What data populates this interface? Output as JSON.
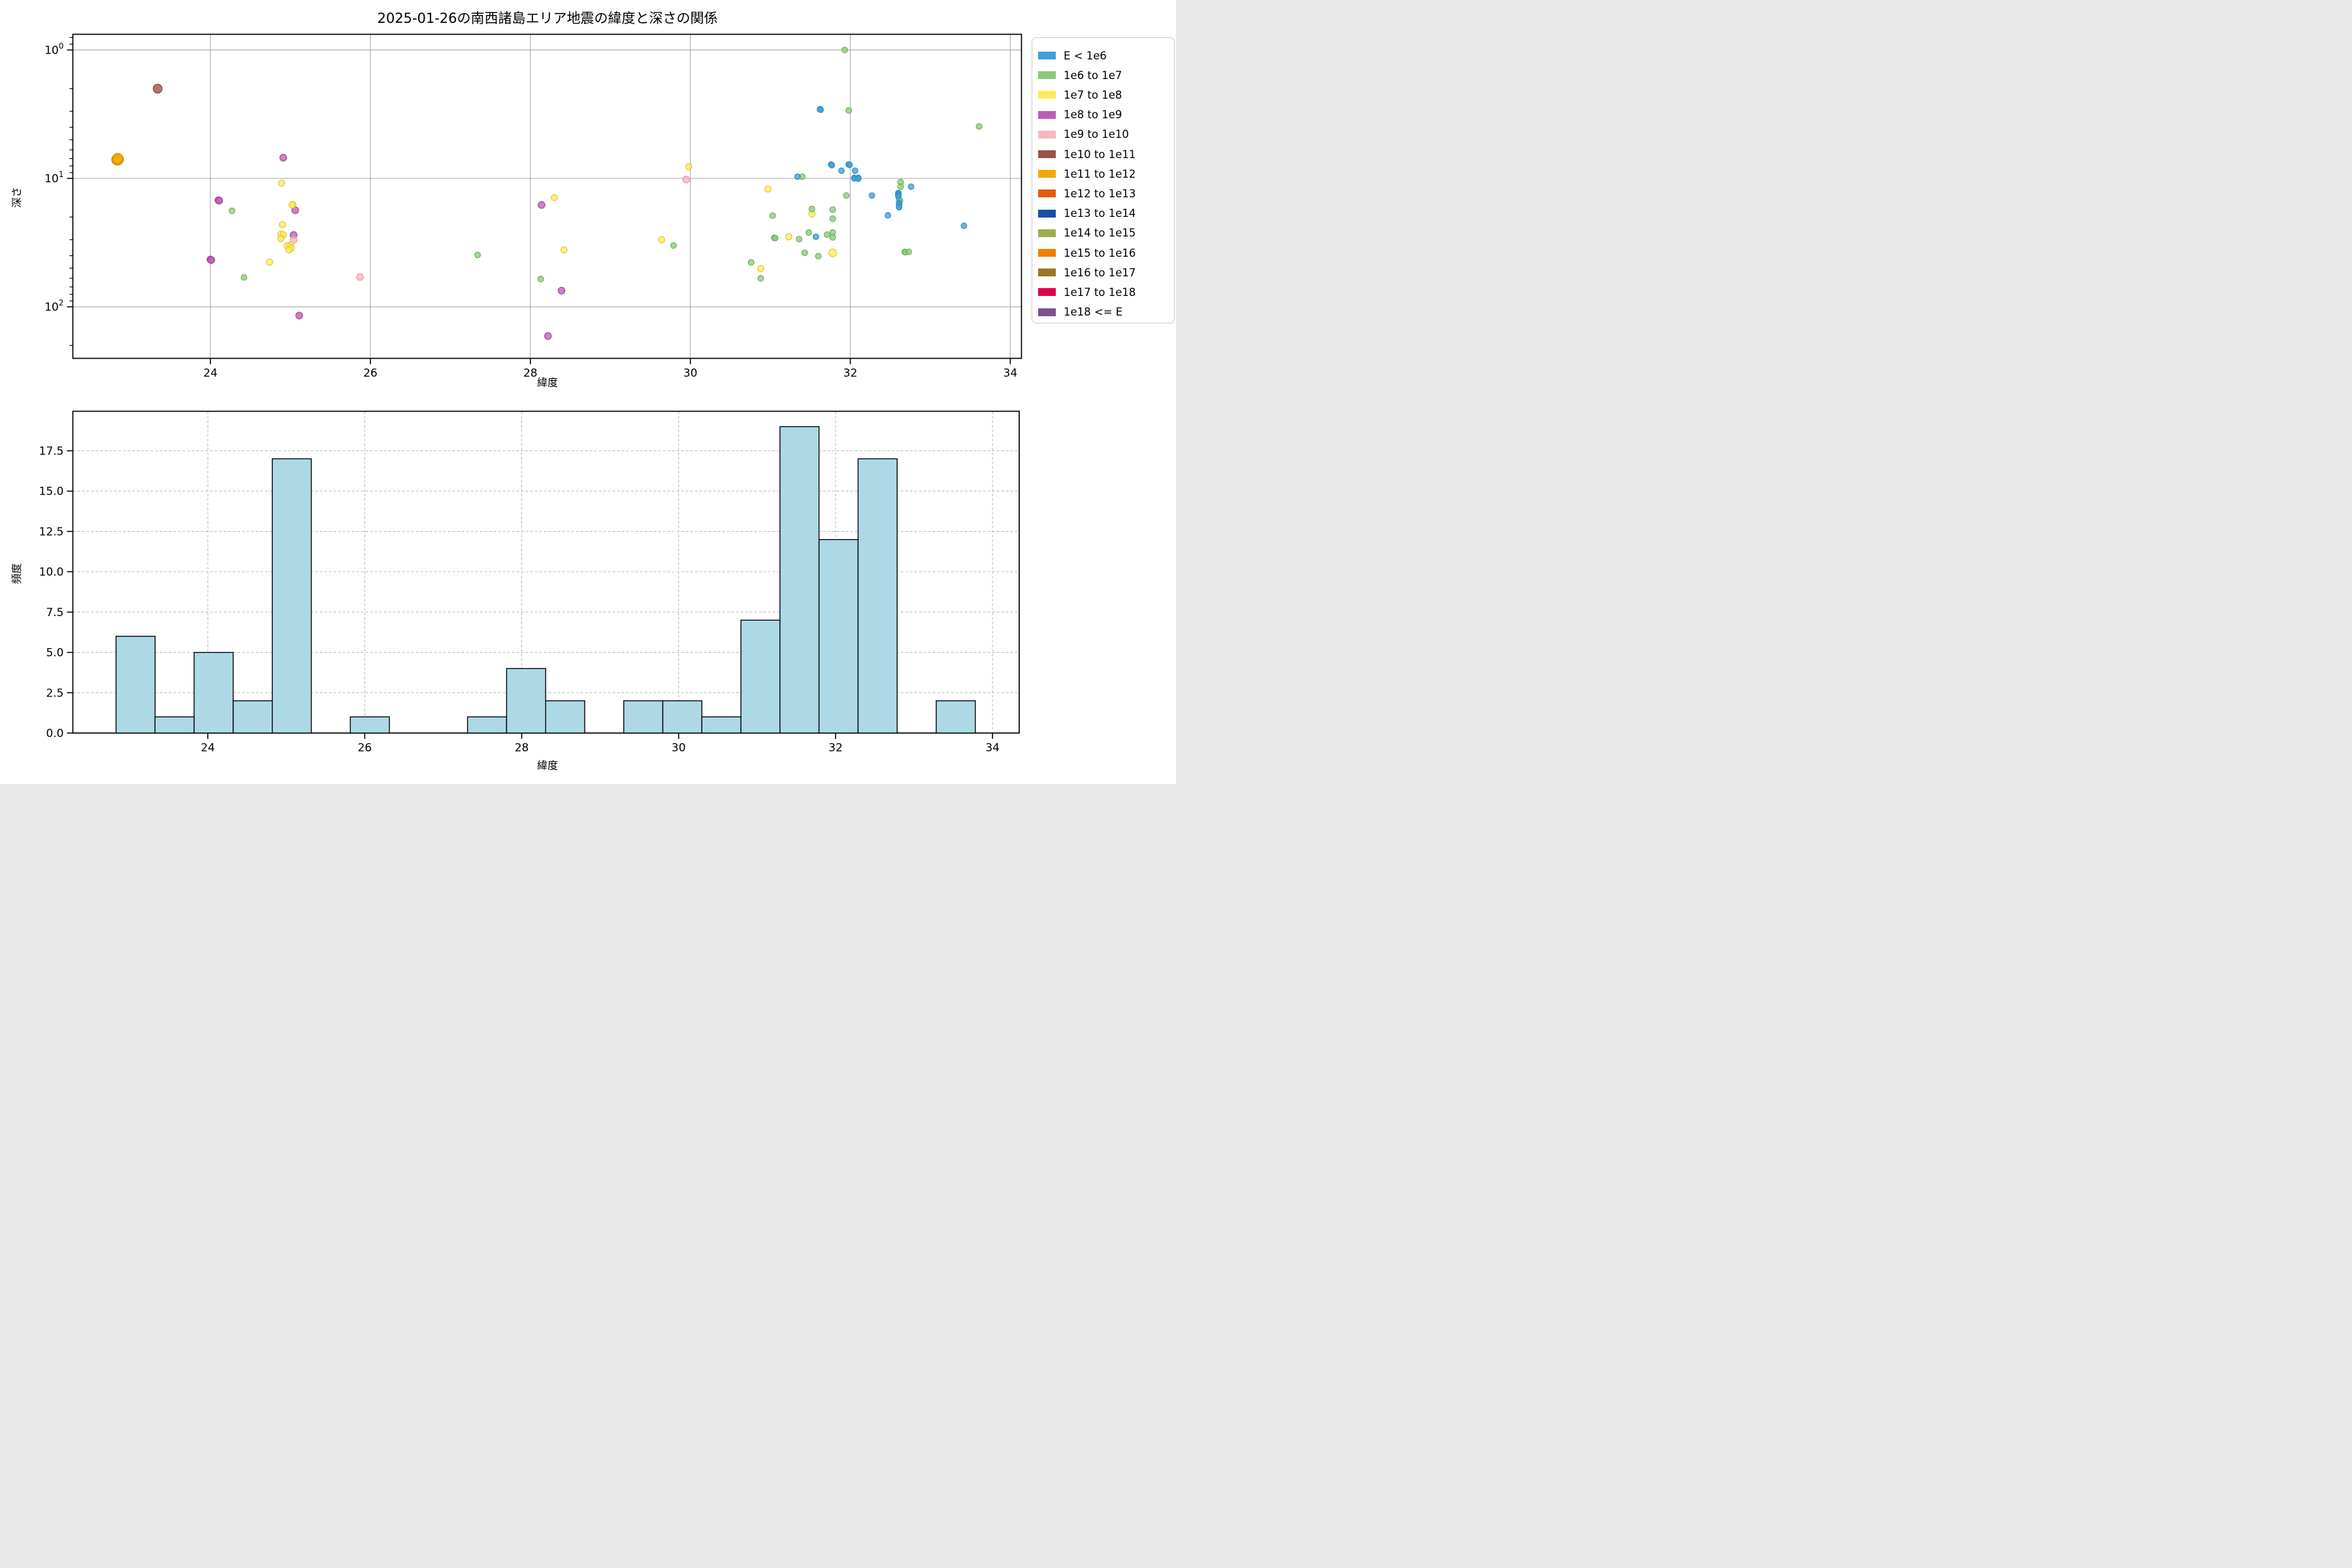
{
  "title": "2025-01-26の南西諸島エリア地震の緯度と深さの関係",
  "colors": {
    "background": "#ffffff",
    "grid_solid": "#b0b0b0",
    "grid_dashed": "#bbbbbb",
    "spine": "#000000",
    "hist_fill": "#add8e6",
    "hist_edge": "#000000"
  },
  "energy_classes": {
    "e6": {
      "label": "E < 1e6",
      "color": "#429fd9",
      "edge": "#2f8cc4",
      "r": 4.3
    },
    "e6_7": {
      "label": "1e6 to 1e7",
      "color": "#8cc97b",
      "edge": "#6fae5c",
      "r": 4.4
    },
    "e7_8": {
      "label": "1e7 to 1e8",
      "color": "#fbec5a",
      "edge": "#ddc93e",
      "r": 4.8
    },
    "e8_9": {
      "label": "1e8 to 1e9",
      "color": "#bd5fb5",
      "edge": "#a0459a",
      "r": 5.2
    },
    "e9_10": {
      "label": "1e9 to 1e10",
      "color": "#f4b8bc",
      "edge": "#dd9aa0",
      "r": 5.2
    },
    "e10_11": {
      "label": "1e10 to 1e11",
      "color": "#9a5348",
      "edge": "#7e413a",
      "r": 6.8
    },
    "e11_12": {
      "label": "1e11 to 1e12",
      "color": "#f4a800",
      "edge": "#d28e00",
      "r": 7.8
    },
    "e12_13": {
      "label": "1e12 to 1e13",
      "color": "#e55a0b",
      "edge": "#c44a06",
      "r": 5.2
    },
    "e13_14": {
      "label": "1e13 to 1e14",
      "color": "#1a4f9e",
      "edge": "#143e7e",
      "r": 5.2
    },
    "e14_15": {
      "label": "1e14 to 1e15",
      "color": "#9ead4d",
      "edge": "#81903c",
      "r": 5.2
    },
    "e15_16": {
      "label": "1e15 to 1e16",
      "color": "#f07e00",
      "edge": "#c96800",
      "r": 5.2
    },
    "e16_17": {
      "label": "1e16 to 1e17",
      "color": "#9a7729",
      "edge": "#7d5f1f",
      "r": 5.2
    },
    "e17_18": {
      "label": "1e17 to 1e18",
      "color": "#df0050",
      "edge": "#b30040",
      "r": 5.2
    },
    "e18": {
      "label": "1e18 <= E",
      "color": "#7c5190",
      "edge": "#634074",
      "r": 5.2
    }
  },
  "legend": {
    "entries": [
      "e6",
      "e6_7",
      "e7_8",
      "e8_9",
      "e9_10",
      "e10_11",
      "e11_12",
      "e12_13",
      "e13_14",
      "e14_15",
      "e15_16",
      "e16_17",
      "e17_18",
      "e18"
    ]
  },
  "chart_data": [
    {
      "type": "scatter",
      "title": "2025-01-26の南西諸島エリア地震の緯度と深さの関係",
      "xlabel": "緯度",
      "ylabel": "深さ",
      "xlim": [
        22.28,
        34.14
      ],
      "ylim_depth": [
        0.755,
        252
      ],
      "y_scale": "log-inverted",
      "xticks": [
        24,
        26,
        28,
        30,
        32,
        34
      ],
      "yticks": [
        {
          "base": "10",
          "exp": "0",
          "value": 1
        },
        {
          "base": "10",
          "exp": "1",
          "value": 10
        },
        {
          "base": "10",
          "exp": "2",
          "value": 100
        }
      ],
      "grid": "solid-major",
      "legend_position": "upper-right-outside",
      "points": [
        [
          22.84,
          7.1,
          "e11_12"
        ],
        [
          22.84,
          7.05,
          "e11_12"
        ],
        [
          22.83,
          7.15,
          "e11_12"
        ],
        [
          22.85,
          7.1,
          "e11_12"
        ],
        [
          22.84,
          7.2,
          "e11_12"
        ],
        [
          22.84,
          7.0,
          "e11_12"
        ],
        [
          23.34,
          2.0,
          "e10_11"
        ],
        [
          24.91,
          6.9,
          "e8_9"
        ],
        [
          24.1,
          14.8,
          "e8_9"
        ],
        [
          24.11,
          14.9,
          "e8_9"
        ],
        [
          25.06,
          17.7,
          "e8_9"
        ],
        [
          25.04,
          27.6,
          "e8_9"
        ],
        [
          24.0,
          42.8,
          "e8_9"
        ],
        [
          24.01,
          43.2,
          "e8_9"
        ],
        [
          25.11,
          117,
          "e8_9"
        ],
        [
          28.14,
          16.1,
          "e8_9"
        ],
        [
          28.39,
          74.9,
          "e8_9"
        ],
        [
          28.22,
          169,
          "e8_9"
        ],
        [
          25.04,
          30.1,
          "e9_10"
        ],
        [
          25.87,
          58.6,
          "e9_10"
        ],
        [
          29.95,
          10.2,
          "e9_10"
        ],
        [
          24.89,
          10.9,
          "e7_8"
        ],
        [
          25.03,
          16.0,
          "e7_8"
        ],
        [
          25.02,
          16.1,
          "e7_8"
        ],
        [
          24.9,
          22.9,
          "e7_8"
        ],
        [
          24.88,
          27.2,
          "e7_8"
        ],
        [
          24.91,
          27.4,
          "e7_8"
        ],
        [
          24.88,
          29.4,
          "e7_8"
        ],
        [
          25.0,
          33.0,
          "e7_8"
        ],
        [
          24.96,
          33.5,
          "e7_8"
        ],
        [
          24.99,
          34.2,
          "e7_8"
        ],
        [
          25.01,
          35.0,
          "e7_8"
        ],
        [
          24.98,
          36.1,
          "e7_8"
        ],
        [
          24.74,
          44.8,
          "e7_8"
        ],
        [
          28.3,
          14.1,
          "e7_8"
        ],
        [
          28.42,
          36.0,
          "e7_8"
        ],
        [
          29.64,
          30.0,
          "e7_8"
        ],
        [
          29.98,
          8.1,
          "e7_8"
        ],
        [
          30.97,
          12.1,
          "e7_8"
        ],
        [
          30.88,
          50.4,
          "e7_8"
        ],
        [
          31.23,
          28.5,
          "e7_8"
        ],
        [
          31.52,
          18.9,
          "e7_8"
        ],
        [
          31.78,
          38.0,
          "e7_8",
          6
        ],
        [
          24.27,
          17.9,
          "e6_7"
        ],
        [
          24.42,
          59.0,
          "e6_7"
        ],
        [
          27.34,
          39.5,
          "e6_7"
        ],
        [
          28.13,
          60.8,
          "e6_7"
        ],
        [
          29.79,
          33.3,
          "e6_7"
        ],
        [
          30.76,
          45.1,
          "e6_7"
        ],
        [
          30.88,
          60.1,
          "e6_7"
        ],
        [
          31.03,
          19.5,
          "e6_7"
        ],
        [
          31.05,
          29.0,
          "e6_7"
        ],
        [
          31.06,
          29.2,
          "e6_7"
        ],
        [
          31.36,
          29.7,
          "e6_7"
        ],
        [
          31.4,
          9.7,
          "e6_7"
        ],
        [
          31.43,
          38.0,
          "e6_7"
        ],
        [
          31.48,
          26.4,
          "e6_7"
        ],
        [
          31.52,
          17.3,
          "e6_7"
        ],
        [
          31.6,
          40.3,
          "e6_7"
        ],
        [
          31.71,
          27.4,
          "e6_7"
        ],
        [
          31.78,
          17.5,
          "e6_7"
        ],
        [
          31.78,
          20.6,
          "e6_7"
        ],
        [
          31.78,
          26.4,
          "e6_7"
        ],
        [
          31.78,
          28.8,
          "e6_7"
        ],
        [
          31.93,
          1.0,
          "e6_7"
        ],
        [
          31.95,
          13.6,
          "e6_7"
        ],
        [
          31.98,
          2.96,
          "e6_7"
        ],
        [
          32.63,
          10.7,
          "e6_7"
        ],
        [
          32.63,
          11.6,
          "e6_7"
        ],
        [
          32.62,
          14.9,
          "e6_7"
        ],
        [
          32.61,
          14.7,
          "e6_7"
        ],
        [
          32.68,
          37.4,
          "e6_7"
        ],
        [
          32.69,
          37.6,
          "e6_7"
        ],
        [
          32.73,
          37.4,
          "e6_7"
        ],
        [
          33.61,
          3.94,
          "e6_7"
        ],
        [
          31.62,
          2.89,
          "e6"
        ],
        [
          31.63,
          2.92,
          "e6"
        ],
        [
          31.76,
          7.8,
          "e6"
        ],
        [
          31.77,
          7.9,
          "e6"
        ],
        [
          31.34,
          9.7,
          "e6"
        ],
        [
          31.57,
          28.5,
          "e6"
        ],
        [
          31.89,
          8.7,
          "e6"
        ],
        [
          31.98,
          7.8,
          "e6"
        ],
        [
          31.99,
          7.85,
          "e6"
        ],
        [
          32.05,
          9.9,
          "e6"
        ],
        [
          32.05,
          10.0,
          "e6"
        ],
        [
          32.06,
          8.7,
          "e6"
        ],
        [
          32.1,
          9.9,
          "e6"
        ],
        [
          32.1,
          10.05,
          "e6"
        ],
        [
          32.27,
          13.6,
          "e6"
        ],
        [
          32.47,
          19.4,
          "e6"
        ],
        [
          32.6,
          13.0,
          "e6"
        ],
        [
          32.6,
          13.2,
          "e6"
        ],
        [
          32.6,
          13.5,
          "e6"
        ],
        [
          32.6,
          13.8,
          "e6"
        ],
        [
          32.61,
          15.6,
          "e6"
        ],
        [
          32.61,
          15.8,
          "e6"
        ],
        [
          32.61,
          16.6,
          "e6"
        ],
        [
          32.61,
          16.8,
          "e6"
        ],
        [
          32.76,
          11.6,
          "e6"
        ],
        [
          33.42,
          23.4,
          "e6"
        ]
      ]
    },
    {
      "type": "bar",
      "variant": "histogram",
      "xlabel": "緯度",
      "ylabel": "頻度",
      "xlim": [
        22.28,
        34.34
      ],
      "ylim": [
        0,
        19.95
      ],
      "xticks": [
        24,
        26,
        28,
        30,
        32,
        34
      ],
      "yticks": [
        "0.0",
        "2.5",
        "5.0",
        "7.5",
        "10.0",
        "12.5",
        "15.0",
        "17.5"
      ],
      "grid": "dashed-major",
      "bin_start": 22.83,
      "bin_width": 0.49773,
      "counts": [
        6,
        1,
        5,
        2,
        17,
        0,
        1,
        0,
        0,
        1,
        4,
        2,
        0,
        2,
        2,
        1,
        7,
        19,
        12,
        17,
        0,
        2
      ]
    }
  ]
}
